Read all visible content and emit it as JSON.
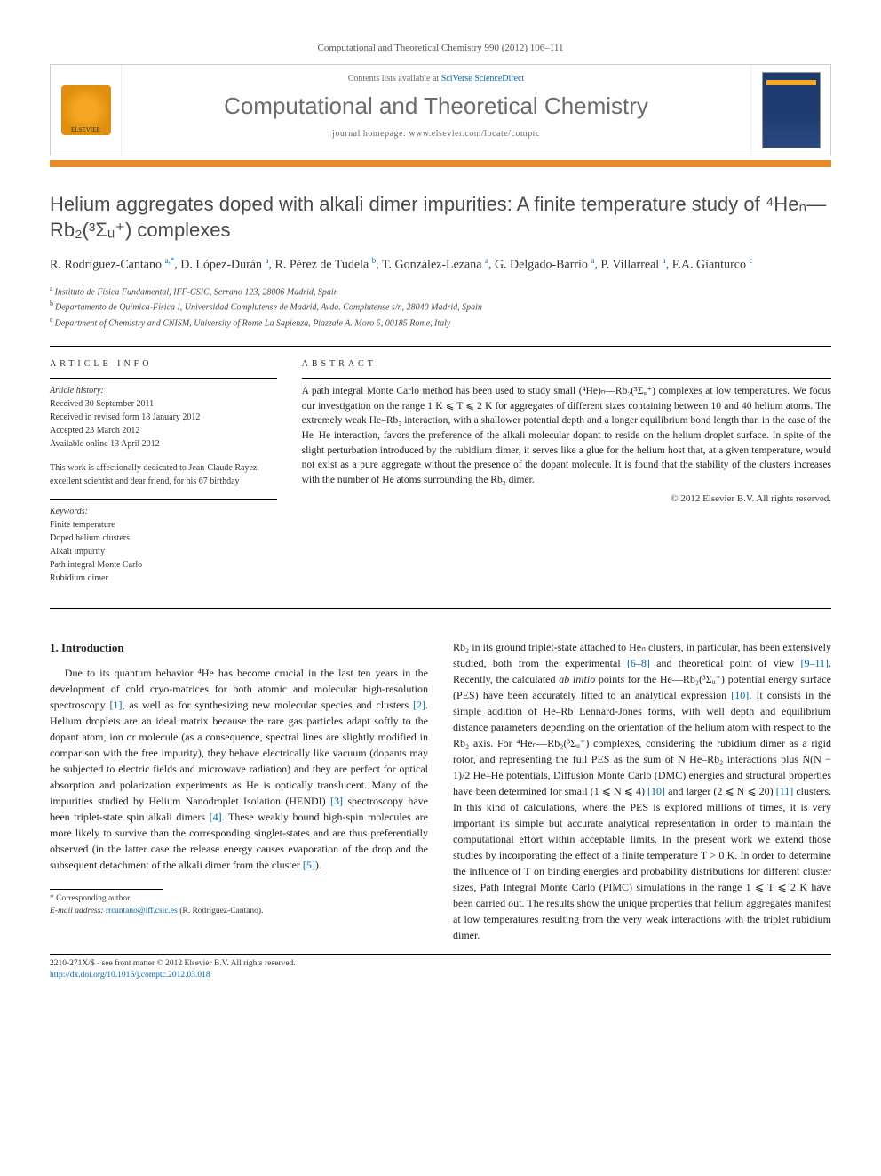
{
  "journal_ref": "Computational and Theoretical Chemistry 990 (2012) 106–111",
  "header": {
    "elsevier": "ELSEVIER",
    "contents_prefix": "Contents lists available at ",
    "contents_link": "SciVerse ScienceDirect",
    "journal_name": "Computational and Theoretical Chemistry",
    "homepage_prefix": "journal homepage: ",
    "homepage_url": "www.elsevier.com/locate/comptc"
  },
  "title": "Helium aggregates doped with alkali dimer impurities: A finite temperature study of ⁴Heₙ—Rb₂(³Σᵤ⁺) complexes",
  "authors_html": "R. Rodríguez-Cantano <sup>a,*</sup>, D. López-Durán <sup>a</sup>, R. Pérez de Tudela <sup>b</sup>, T. González-Lezana <sup>a</sup>, G. Delgado-Barrio <sup>a</sup>, P. Villarreal <sup>a</sup>, F.A. Gianturco <sup>c</sup>",
  "affiliations": [
    {
      "sup": "a",
      "text": "Instituto de Física Fundamental, IFF-CSIC, Serrano 123, 28006 Madrid, Spain"
    },
    {
      "sup": "b",
      "text": "Departamento de Química-Física I, Universidad Complutense de Madrid, Avda. Complutense s/n, 28040 Madrid, Spain"
    },
    {
      "sup": "c",
      "text": "Department of Chemistry and CNISM, University of Rome La Sapienza, Piazzale A. Moro 5, 00185 Rome, Italy"
    }
  ],
  "info": {
    "label": "ARTICLE INFO",
    "history_label": "Article history:",
    "history": [
      "Received 30 September 2011",
      "Received in revised form 18 January 2012",
      "Accepted 23 March 2012",
      "Available online 13 April 2012"
    ],
    "dedication": "This work is affectionally dedicated to Jean-Claude Rayez, excellent scientist and dear friend, for his 67 birthday",
    "keywords_label": "Keywords:",
    "keywords": [
      "Finite temperature",
      "Doped helium clusters",
      "Alkali impurity",
      "Path integral Monte Carlo",
      "Rubidium dimer"
    ]
  },
  "abstract": {
    "label": "ABSTRACT",
    "text": "A path integral Monte Carlo method has been used to study small (⁴He)ₙ—Rb₂(³Σᵤ⁺) complexes at low temperatures. We focus our investigation on the range 1 K ⩽ T ⩽ 2 K for aggregates of different sizes containing between 10 and 40 helium atoms. The extremely weak He–Rb₂ interaction, with a shallower potential depth and a longer equilibrium bond length than in the case of the He–He interaction, favors the preference of the alkali molecular dopant to reside on the helium droplet surface. In spite of the slight perturbation introduced by the rubidium dimer, it serves like a glue for the helium host that, at a given temperature, would not exist as a pure aggregate without the presence of the dopant molecule. It is found that the stability of the clusters increases with the number of He atoms surrounding the Rb₂ dimer.",
    "copyright": "© 2012 Elsevier B.V. All rights reserved."
  },
  "section1": {
    "heading": "1. Introduction",
    "para1": "Due to its quantum behavior ⁴He has become crucial in the last ten years in the development of cold cryo-matrices for both atomic and molecular high-resolution spectroscopy [1], as well as for synthesizing new molecular species and clusters [2]. Helium droplets are an ideal matrix because the rare gas particles adapt softly to the dopant atom, ion or molecule (as a consequence, spectral lines are slightly modified in comparison with the free impurity), they behave electrically like vacuum (dopants may be subjected to electric fields and microwave radiation) and they are perfect for optical absorption and polarization experiments as He is optically translucent. Many of the impurities studied by Helium Nanodroplet Isolation (HENDI) [3] spectroscopy have been triplet-state spin alkali dimers [4]. These weakly bound high-spin molecules are more likely to survive than the corresponding singlet-states and are thus preferentially observed (in the latter case the release energy causes evaporation of the drop and the subsequent detachment of the alkali dimer from the cluster [5]).",
    "para2": "Rb₂ in its ground triplet-state attached to Heₙ clusters, in particular, has been extensively studied, both from the experimental [6–8] and theoretical point of view [9–11]. Recently, the calculated ab initio points for the He—Rb₂(³Σᵤ⁺) potential energy surface (PES) have been accurately fitted to an analytical expression [10]. It consists in the simple addition of He–Rb Lennard-Jones forms, with well depth and equilibrium distance parameters depending on the orientation of the helium atom with respect to the Rb₂ axis. For ⁴Heₙ—Rb₂(³Σᵤ⁺) complexes, considering the rubidium dimer as a rigid rotor, and representing the full PES as the sum of N He–Rb₂ interactions plus N(N − 1)/2 He–He potentials, Diffusion Monte Carlo (DMC) energies and structural properties have been determined for small (1 ⩽ N ⩽ 4) [10] and larger (2 ⩽ N ⩽ 20) [11] clusters. In this kind of calculations, where the PES is explored millions of times, it is very important its simple but accurate analytical representation in order to maintain the computational effort within acceptable limits. In the present work we extend those studies by incorporating the effect of a finite temperature T > 0 K. In order to determine the influence of T on binding energies and probability distributions for different cluster sizes, Path Integral Monte Carlo (PIMC) simulations in the range 1 ⩽ T ⩽ 2 K have been carried out. The results show the unique properties that helium aggregates manifest at low temperatures resulting from the very weak interactions with the triplet rubidium dimer."
  },
  "footnote": {
    "corr": "* Corresponding author.",
    "email_label": "E-mail address:",
    "email": "rrcantano@iff.csic.es",
    "email_name": "(R. Rodríguez-Cantano)."
  },
  "bottom": {
    "line1": "2210-271X/$ - see front matter © 2012 Elsevier B.V. All rights reserved.",
    "doi": "http://dx.doi.org/10.1016/j.comptc.2012.03.018"
  },
  "colors": {
    "orange_bar": "#e98b2c",
    "link": "#0066aa",
    "title_gray": "#4a4a4a",
    "journal_gray": "#6b6b6b"
  }
}
